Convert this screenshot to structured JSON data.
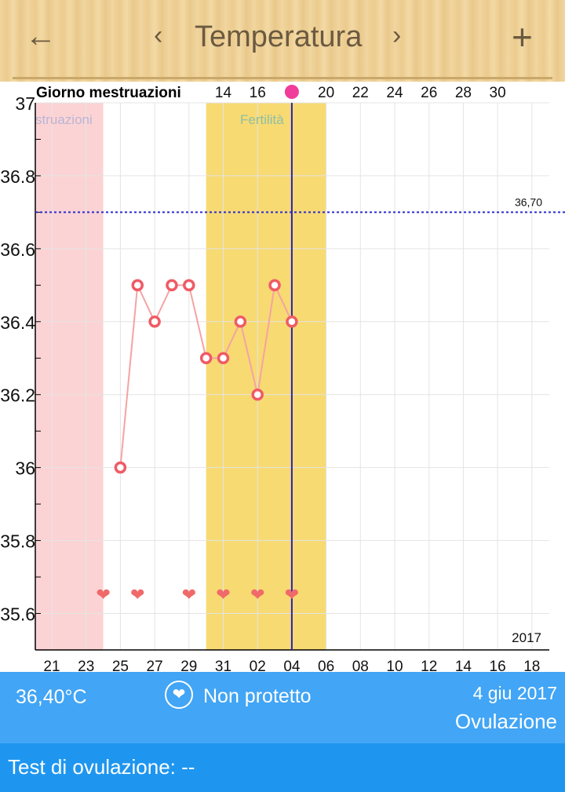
{
  "header": {
    "back_icon": "arrow-left",
    "prev_icon": "chevron-left",
    "title": "Temperatura",
    "next_icon": "chevron-right",
    "add_icon": "plus"
  },
  "chart_data": {
    "type": "line",
    "top_label": "Giorno mestruazioni",
    "cycle_day_ticks": [
      "14",
      "16",
      "20",
      "22",
      "24",
      "26",
      "28",
      "30"
    ],
    "cycle_marker_day": 18,
    "cycle_day1_date": "2017-05-18",
    "x_ticks": [
      "21",
      "23",
      "25",
      "27",
      "29",
      "31",
      "02",
      "04",
      "06",
      "08",
      "10",
      "12",
      "14",
      "16",
      "18"
    ],
    "x_range": [
      "2017-05-20",
      "2017-06-19"
    ],
    "year_label": "2017",
    "y_ticks": [
      "37",
      "36.8",
      "36.6",
      "36.4",
      "36.2",
      "36",
      "35.8",
      "35.6"
    ],
    "ylim": [
      35.5,
      37
    ],
    "grid": true,
    "threshold": {
      "value": 36.7,
      "label": "36,70",
      "color": "#2b2bd0"
    },
    "bands": [
      {
        "label": "struazioni",
        "from": "2017-05-20",
        "to": "2017-05-24",
        "color": "#fcd3d4"
      },
      {
        "label": "Fertilità",
        "from": "2017-05-30",
        "to": "2017-06-06",
        "color": "#f7da72"
      }
    ],
    "ovulation_date": "2017-06-04",
    "series": [
      {
        "color": "#f28a8a",
        "points": [
          [
            "2017-05-25",
            36.0
          ],
          [
            "2017-05-26",
            36.5
          ],
          [
            "2017-05-27",
            36.4
          ],
          [
            "2017-05-28",
            36.5
          ],
          [
            "2017-05-29",
            36.5
          ],
          [
            "2017-05-30",
            36.3
          ],
          [
            "2017-05-31",
            36.3
          ],
          [
            "2017-06-01",
            36.4
          ],
          [
            "2017-06-02",
            36.2
          ],
          [
            "2017-06-03",
            36.5
          ],
          [
            "2017-06-04",
            36.4
          ]
        ]
      }
    ],
    "intercourse_dates": [
      "2017-05-24",
      "2017-05-26",
      "2017-05-29",
      "2017-05-31",
      "2017-06-02",
      "2017-06-04"
    ]
  },
  "info": {
    "temperature": "36,40°C",
    "protection": "Non protetto",
    "date": "4 giu 2017",
    "phase": "Ovulazione"
  },
  "test": {
    "label": "Test di ovulazione: --"
  }
}
